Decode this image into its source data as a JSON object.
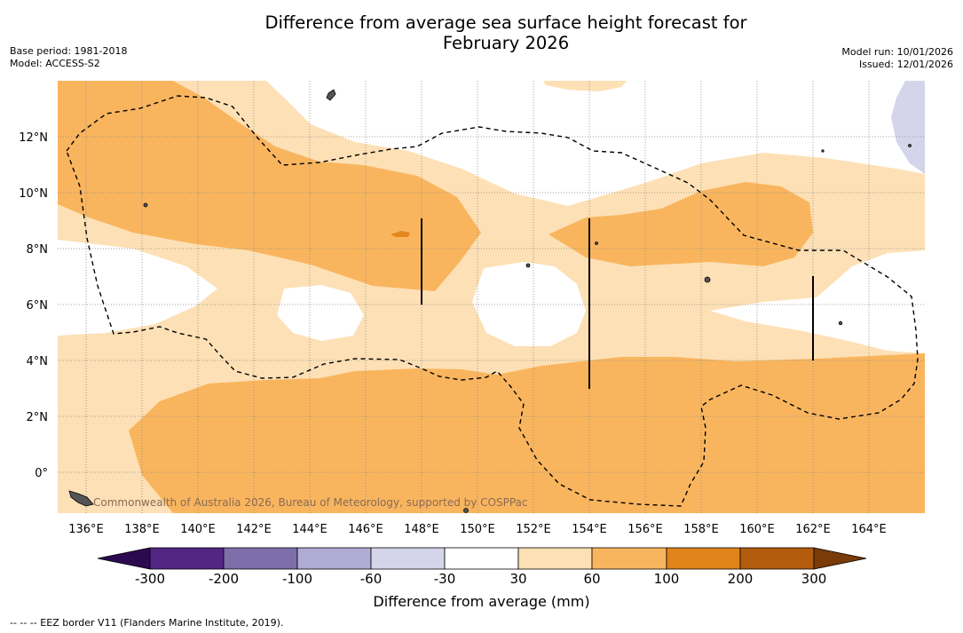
{
  "header": {
    "title_line1": "Difference from average sea surface height forecast for",
    "title_line2": "February 2026",
    "base_period": "Base period: 1981-2018",
    "model": "Model: ACCESS-S2",
    "model_run": "Model run: 10/01/2026",
    "issued": "Issued: 12/01/2026"
  },
  "map": {
    "lat_labels": [
      "12°N",
      "10°N",
      "8°N",
      "6°N",
      "4°N",
      "2°N",
      "0°"
    ],
    "lon_labels": [
      "136°E",
      "138°E",
      "140°E",
      "142°E",
      "144°E",
      "146°E",
      "148°E",
      "150°E",
      "152°E",
      "154°E",
      "156°E",
      "158°E",
      "160°E",
      "162°E",
      "164°E"
    ],
    "copyright": "Commonwealth of Australia 2026, Bureau of Meteorology, supported by COSPPac",
    "colors": {
      "neg_low": "#d4d5ea",
      "pos_low": "#fde0b5",
      "pos_mid": "#f9b55e",
      "pos_high": "#e5861a",
      "boundary": "#000000"
    }
  },
  "colorbar": {
    "ticks": [
      "-300",
      "-200",
      "-100",
      "-60",
      "-30",
      "30",
      "60",
      "100",
      "200",
      "300"
    ],
    "colors": [
      "#2d0a50",
      "#522683",
      "#7e6fab",
      "#b0abd2",
      "#d4d5ea",
      "#ffffff",
      "#fde0b5",
      "#f9b55e",
      "#e0841a",
      "#b35c0e",
      "#7a3b08"
    ],
    "label": "Difference from average (mm)"
  },
  "footnote": "--  --  -- EEZ border V11 (Flanders Marine Institute, 2019)."
}
